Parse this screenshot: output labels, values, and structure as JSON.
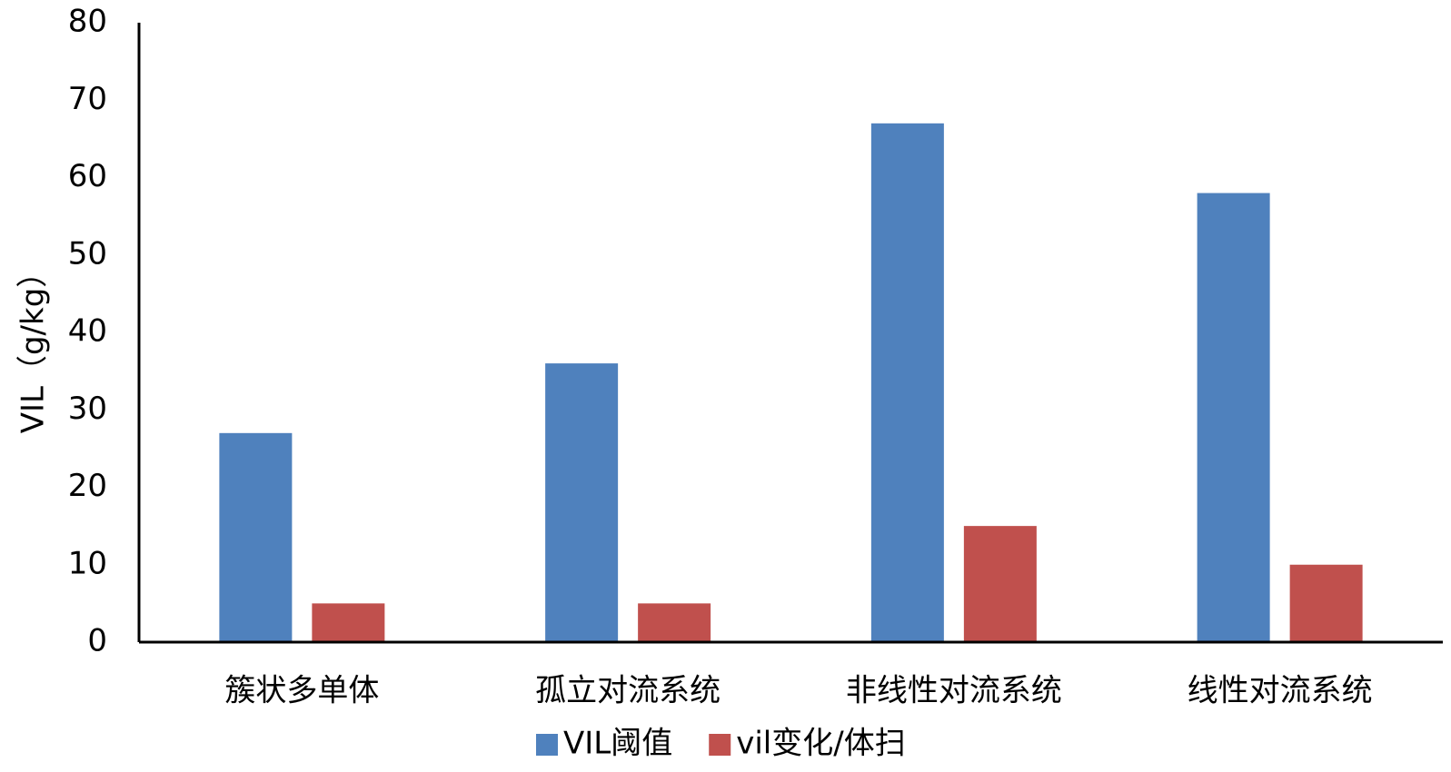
{
  "chart_data": {
    "type": "bar",
    "y_label": "VIL（g/kg）",
    "categories": [
      "簇状多单体",
      "孤立对流系统",
      "非线性对流系统",
      "线性对流系统"
    ],
    "series": [
      {
        "name": "VIL阈值",
        "color": "#4f81bd",
        "values": [
          27,
          36,
          67,
          58
        ]
      },
      {
        "name": "vil变化/体扫",
        "color": "#c0504d",
        "values": [
          5,
          5,
          15,
          10
        ]
      }
    ],
    "ylim": [
      0,
      80
    ],
    "yticks": [
      0,
      10,
      20,
      30,
      40,
      50,
      60,
      70,
      80
    ],
    "grid": false,
    "legend": "bottom"
  }
}
